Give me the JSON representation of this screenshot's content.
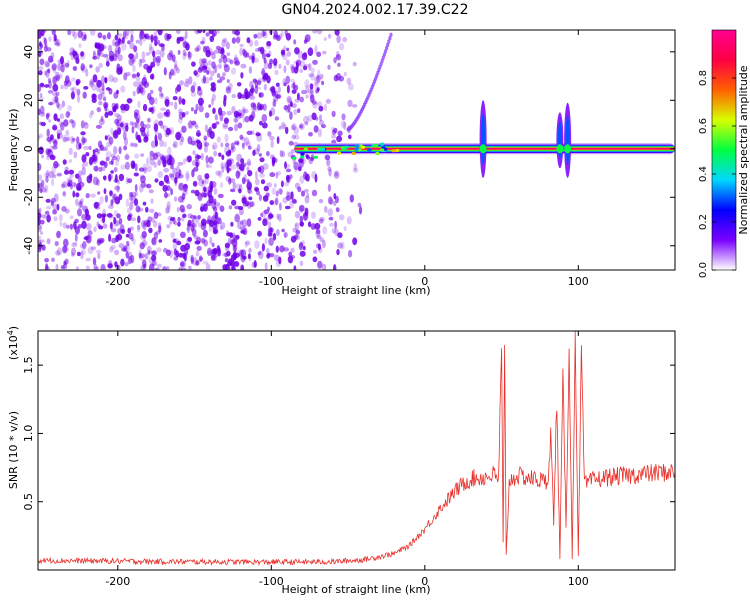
{
  "figure": {
    "title": "GN04.2024.002.17.39.C22"
  },
  "chart_data": [
    {
      "type": "heatmap",
      "title": "",
      "xlabel": "Height of straight line (km)",
      "ylabel": "Frequency (Hz)",
      "xlim": [
        -252,
        163
      ],
      "ylim": [
        -50,
        49
      ],
      "x_ticks": [
        -200,
        -100,
        0,
        100
      ],
      "x_tick_labels": [
        "-200",
        "-100",
        "0",
        "100"
      ],
      "y_ticks": [
        -40,
        -20,
        0,
        20,
        40
      ],
      "y_tick_labels": [
        "-40",
        "-20",
        "0",
        "20",
        "40"
      ],
      "colorbar": {
        "label": "Normalized spectral amplitude",
        "range": [
          0,
          1
        ],
        "ticks": [
          0.0,
          0.2,
          0.4,
          0.6,
          0.8
        ],
        "tick_labels": [
          "0.0",
          "0.2",
          "0.4",
          "0.6",
          "0.8"
        ],
        "colors": [
          "#ffffff",
          "#7a00ff",
          "#0000ff",
          "#00d8ff",
          "#00ff40",
          "#d8ff00",
          "#ff6000",
          "#ff0044",
          "#ff0090"
        ]
      },
      "features": {
        "noise_region_x": [
          -252,
          -85
        ],
        "noise_fade_x": [
          -85,
          -40
        ],
        "main_line": {
          "x": [
            -85,
            163
          ],
          "frequency": 0,
          "amplitude": 0.95
        },
        "chirp": {
          "x": [
            -50,
            -22
          ],
          "frequency": [
            8,
            47
          ]
        },
        "bursts": [
          {
            "x": 38,
            "frequency_span": [
              -12,
              20
            ]
          },
          {
            "x": 88,
            "frequency_span": [
              -8,
              15
            ]
          },
          {
            "x": 93,
            "frequency_span": [
              -12,
              19
            ]
          }
        ]
      }
    },
    {
      "type": "line",
      "title": "",
      "xlabel": "Height of straight line (km)",
      "ylabel": "SNR (10 * v/v)",
      "y_multiplier": "(x10",
      "y_multiplier_exp": "4",
      "y_multiplier_close": ")",
      "xlim": [
        -252,
        163
      ],
      "ylim": [
        0,
        17500
      ],
      "x_ticks": [
        -200,
        -100,
        0,
        100
      ],
      "x_tick_labels": [
        "-200",
        "-100",
        "0",
        "100"
      ],
      "y_ticks": [
        5000,
        10000,
        15000
      ],
      "y_tick_labels": [
        "0.5",
        "1.0",
        "1.5"
      ],
      "series": [
        {
          "color": "#e8302a",
          "x": [
            -252,
            -200,
            -150,
            -100,
            -60,
            -40,
            -20,
            -10,
            0,
            10,
            20,
            25,
            30,
            40,
            45,
            48,
            50,
            51,
            52,
            53,
            55,
            60,
            70,
            78,
            80,
            82,
            84,
            86,
            88,
            90,
            92,
            94,
            96,
            98,
            100,
            102,
            104,
            110,
            120,
            140,
            163
          ],
          "y": [
            700,
            650,
            600,
            580,
            600,
            750,
            1200,
            1800,
            3000,
            4500,
            5800,
            6300,
            6700,
            6800,
            7000,
            6500,
            16000,
            2000,
            15800,
            1000,
            6500,
            6900,
            6700,
            6500,
            6400,
            10000,
            3500,
            12500,
            800,
            14000,
            3000,
            16500,
            700,
            17300,
            1000,
            16000,
            6200,
            6600,
            6800,
            7000,
            7200
          ]
        }
      ]
    }
  ]
}
